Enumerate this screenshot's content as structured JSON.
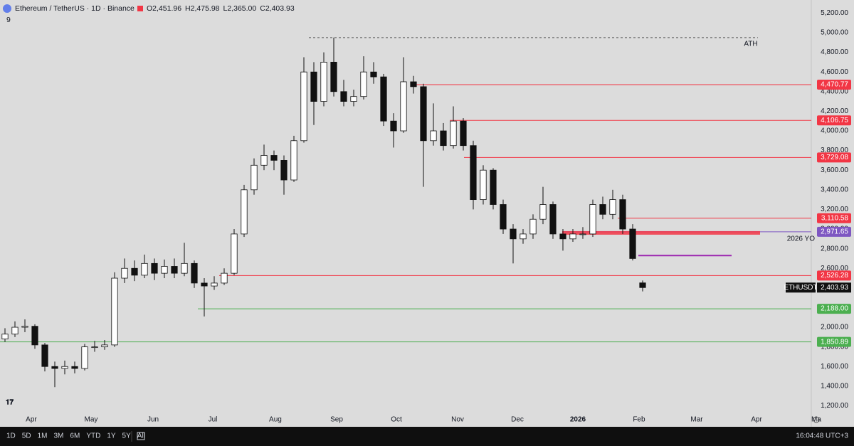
{
  "header": {
    "symbol": "Ethereum / TetherUS · 1D · Binance",
    "ohlc": [
      {
        "key": "O",
        "text": "2,451.96"
      },
      {
        "key": "H",
        "text": "2,475.98"
      },
      {
        "key": "L",
        "text": "2,365.00"
      },
      {
        "key": "C",
        "text": "2,403.93"
      }
    ],
    "sub": "9"
  },
  "chart_data": {
    "type": "candlestick",
    "open": [
      1880,
      1930,
      2000,
      2010,
      1820,
      1600,
      1580,
      1600,
      1580,
      1800,
      1800,
      1820,
      2500,
      2600,
      2530,
      2650,
      2550,
      2620,
      2550,
      2650,
      2450,
      2420,
      2450,
      2550,
      2950,
      3400,
      3650,
      3750,
      3700,
      3500,
      3900,
      4600,
      4300,
      4700,
      4400,
      4300,
      4350,
      4600,
      4550,
      4100,
      4000,
      4500,
      4450,
      3900,
      4000,
      3850,
      4100,
      3850,
      3300,
      3600,
      3250,
      3000,
      2900,
      2950,
      3100,
      3250,
      2950,
      2900,
      2950,
      2950,
      3250,
      3150,
      3300,
      3000,
      2451.96
    ],
    "high": [
      1990,
      2060,
      2080,
      2030,
      1840,
      1650,
      1660,
      1650,
      1830,
      1860,
      1870,
      2560,
      2700,
      2680,
      2740,
      2700,
      2690,
      2700,
      2860,
      2680,
      2500,
      2520,
      2600,
      3000,
      3450,
      3720,
      3860,
      3800,
      3750,
      3950,
      4750,
      4700,
      4800,
      4950,
      4520,
      4420,
      4760,
      4700,
      4580,
      4180,
      4750,
      4560,
      4480,
      4280,
      4080,
      4250,
      4130,
      3900,
      3650,
      3620,
      3300,
      3050,
      3000,
      3150,
      3430,
      3280,
      3000,
      3000,
      3020,
      3300,
      3330,
      3400,
      3350,
      3050,
      2475.98
    ],
    "low": [
      1850,
      1900,
      1950,
      1780,
      1550,
      1390,
      1520,
      1530,
      1560,
      1750,
      1770,
      1800,
      2450,
      2470,
      2500,
      2480,
      2500,
      2500,
      2520,
      2400,
      2110,
      2380,
      2430,
      2530,
      2920,
      3350,
      3600,
      3600,
      3350,
      3480,
      3880,
      4060,
      4250,
      4350,
      4250,
      4250,
      4320,
      4480,
      4050,
      3830,
      3980,
      4380,
      3430,
      3850,
      3800,
      3820,
      3800,
      3200,
      3250,
      3200,
      2950,
      2650,
      2850,
      2900,
      3050,
      2900,
      2780,
      2870,
      2900,
      2920,
      3100,
      3100,
      2950,
      2680,
      2365.0
    ],
    "close": [
      1930,
      2000,
      2010,
      1820,
      1600,
      1580,
      1600,
      1580,
      1800,
      1800,
      1820,
      2500,
      2600,
      2530,
      2650,
      2550,
      2620,
      2550,
      2650,
      2450,
      2420,
      2450,
      2550,
      2950,
      3400,
      3650,
      3750,
      3700,
      3500,
      3900,
      4600,
      4300,
      4700,
      4400,
      4300,
      4350,
      4600,
      4550,
      4100,
      4000,
      4500,
      4450,
      3900,
      4000,
      3850,
      4100,
      3850,
      3300,
      3600,
      3250,
      3000,
      2900,
      2950,
      3100,
      3250,
      2950,
      2900,
      2950,
      2950,
      3250,
      3150,
      3300,
      3000,
      2700,
      2403.93
    ],
    "xlim": [
      -0.5,
      80.93
    ],
    "xticks": [
      {
        "value": 2.64,
        "label": "Apr"
      },
      {
        "value": 8.64,
        "label": "May"
      },
      {
        "value": 14.86,
        "label": "Jun"
      },
      {
        "value": 20.86,
        "label": "Jul"
      },
      {
        "value": 27.14,
        "label": "Aug"
      },
      {
        "value": 33.29,
        "label": "Sep"
      },
      {
        "value": 39.29,
        "label": "Oct"
      },
      {
        "value": 45.43,
        "label": "Nov"
      },
      {
        "value": 51.43,
        "label": "Dec"
      },
      {
        "value": 57.5,
        "label": "2026"
      },
      {
        "value": 63.64,
        "label": "Feb"
      },
      {
        "value": 69.43,
        "label": "Mar"
      },
      {
        "value": 75.43,
        "label": "Apr"
      },
      {
        "value": 81.43,
        "label": "Ma"
      }
    ],
    "ylim": [
      986,
      5333
    ],
    "yticks": [
      {
        "value": 1200,
        "label": "1,200.00"
      },
      {
        "value": 1400,
        "label": "1,400.00"
      },
      {
        "value": 1600,
        "label": "1,600.00"
      },
      {
        "value": 1800,
        "label": "1,800.00"
      },
      {
        "value": 2000,
        "label": "2,000.00"
      },
      {
        "value": 2200,
        "label": "2,200.00"
      },
      {
        "value": 2400,
        "label": "2,400.00"
      },
      {
        "value": 2600,
        "label": "2,600.00"
      },
      {
        "value": 2800,
        "label": "2,800.00"
      },
      {
        "value": 3000,
        "label": "3,000.00"
      },
      {
        "value": 3200,
        "label": "3,200.00"
      },
      {
        "value": 3400,
        "label": "3,400.00"
      },
      {
        "value": 3600,
        "label": "3,600.00"
      },
      {
        "value": 3800,
        "label": "3,800.00"
      },
      {
        "value": 4000,
        "label": "4,000.00"
      },
      {
        "value": 4200,
        "label": "4,200.00"
      },
      {
        "value": 4400,
        "label": "4,400.00"
      },
      {
        "value": 4600,
        "label": "4,600.00"
      },
      {
        "value": 4800,
        "label": "4,800.00"
      },
      {
        "value": 5000,
        "label": "5,000.00"
      },
      {
        "value": 5200,
        "label": "5,200.00"
      }
    ],
    "levels": [
      {
        "value": 4470.77,
        "label": "4,470.77",
        "color": "#f23645"
      },
      {
        "value": 4106.75,
        "label": "4,106.75",
        "color": "#f23645"
      },
      {
        "value": 3729.08,
        "label": "3,729.08",
        "color": "#f23645"
      },
      {
        "value": 3110.58,
        "label": "3,110.58",
        "color": "#f23645"
      },
      {
        "value": 2971.65,
        "label": "2,971.65",
        "color": "#7e57c2",
        "name": "2026 YO"
      },
      {
        "value": 2526.28,
        "label": "2,526.28",
        "color": "#f23645"
      },
      {
        "value": 2188.0,
        "label": "2,188.00",
        "color": "#4caf50"
      },
      {
        "value": 1850.89,
        "label": "1,850.89",
        "color": "#4caf50"
      }
    ],
    "ath": {
      "value": 4950,
      "name": "ATH"
    },
    "marker_line": {
      "value": 2730,
      "color": "#9c27b0"
    },
    "last": {
      "name": "ETHUSDT",
      "value": 2403.93,
      "label": "2,403.93"
    }
  },
  "toolbar": {
    "ranges": [
      "1D",
      "5D",
      "1M",
      "3M",
      "6M",
      "YTD",
      "1Y",
      "5Y",
      "All"
    ],
    "clock": "16:04:48 UTC+3"
  }
}
